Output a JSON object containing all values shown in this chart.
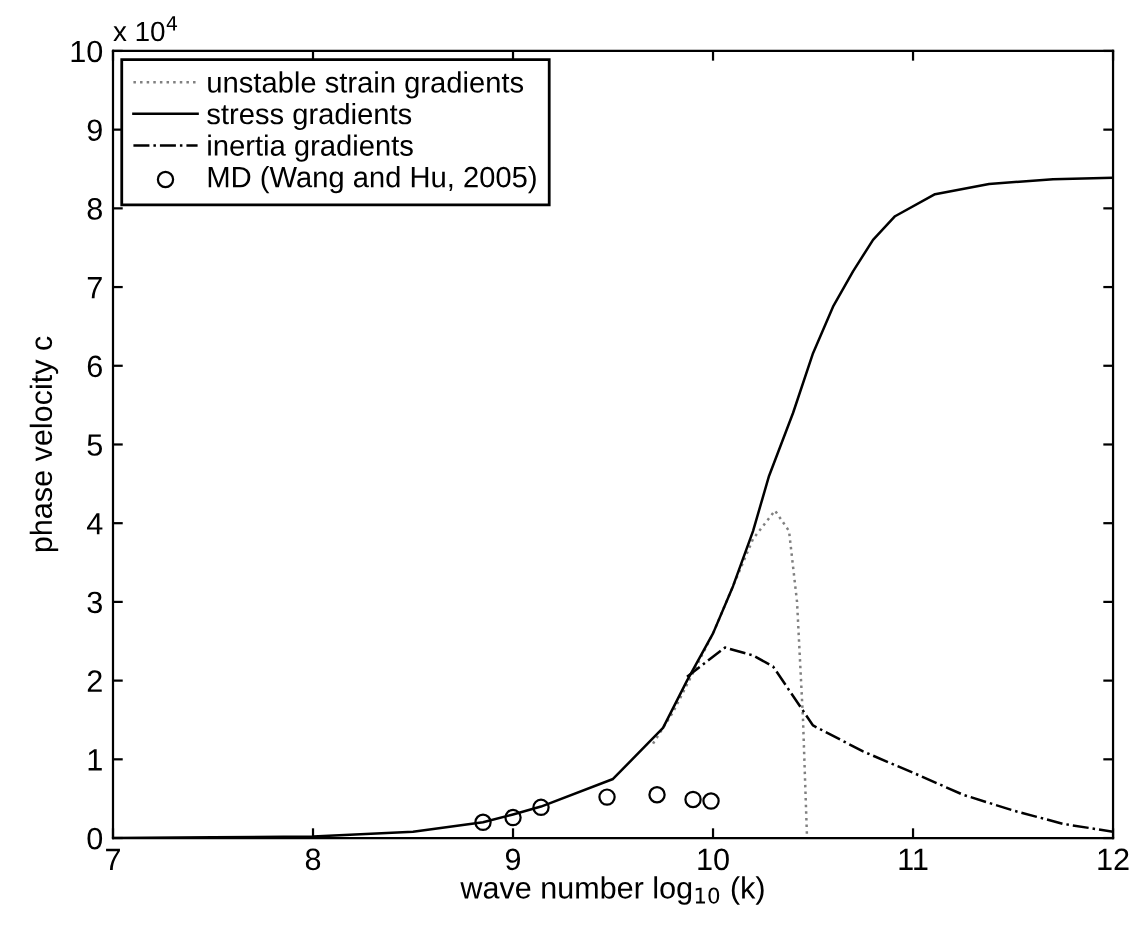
{
  "chart_data": {
    "type": "line",
    "xlabel": "wave number log$_{10}$ (k)",
    "ylabel": "phase velocity c",
    "annotations": [
      "x 10$^{4}$"
    ],
    "xlim": [
      7,
      12
    ],
    "xticks": [
      7,
      8,
      9,
      10,
      11,
      12
    ],
    "ylim": [
      0,
      10
    ],
    "yticks": [
      0,
      1,
      2,
      3,
      4,
      5,
      6,
      7,
      8,
      9,
      10
    ],
    "grid": false,
    "legend": "top left",
    "series": [
      {
        "name": "unstable strain gradients",
        "line_style": "dotted",
        "marker": "none",
        "color": "#808080",
        "x": [
          9.7,
          9.8,
          9.9,
          10.0,
          10.1,
          10.2,
          10.31,
          10.38,
          10.42,
          10.45,
          10.47
        ],
        "values": [
          1.2,
          1.6,
          2.1,
          2.6,
          3.2,
          3.8,
          4.16,
          3.9,
          3.0,
          1.5,
          0
        ]
      },
      {
        "name": "stress gradients",
        "line_style": "solid",
        "marker": "none",
        "color": "#000000",
        "x": [
          7,
          7.5,
          8,
          8.5,
          8.85,
          9,
          9.14,
          9.5,
          9.75,
          9.87,
          10,
          10.1,
          10.2,
          10.28,
          10.4,
          10.5,
          10.6,
          10.7,
          10.8,
          10.91,
          11.11,
          11.38,
          11.7,
          12
        ],
        "values": [
          0,
          0.01,
          0.02,
          0.08,
          0.2,
          0.3,
          0.4,
          0.75,
          1.4,
          2.0,
          2.6,
          3.2,
          3.9,
          4.6,
          5.4,
          6.16,
          6.75,
          7.2,
          7.6,
          7.9,
          8.18,
          8.31,
          8.37,
          8.39
        ]
      },
      {
        "name": "inertia gradients",
        "line_style": "dashdot",
        "marker": "none",
        "color": "#000000",
        "x": [
          9.87,
          10.06,
          10.2,
          10.3,
          10.5,
          10.75,
          11,
          11.25,
          11.5,
          11.75,
          12
        ],
        "values": [
          2.05,
          2.42,
          2.32,
          2.18,
          1.43,
          1.1,
          0.83,
          0.55,
          0.35,
          0.18,
          0.08
        ]
      },
      {
        "name": "MD (Wang and Hu, 2005)",
        "type": "scatter",
        "marker": "circle",
        "color": "#000000",
        "x": [
          8.85,
          9.0,
          9.14,
          9.47,
          9.72,
          9.9,
          9.99
        ],
        "values": [
          0.2,
          0.26,
          0.39,
          0.52,
          0.55,
          0.49,
          0.47
        ]
      }
    ]
  }
}
